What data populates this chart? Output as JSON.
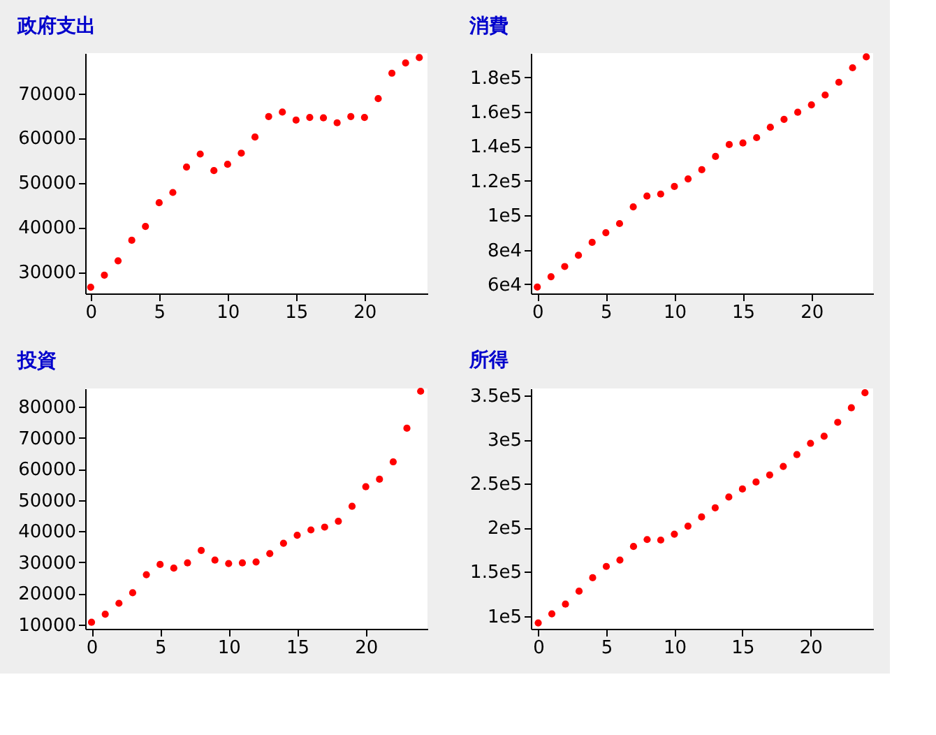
{
  "chart_data": [
    {
      "type": "scatter",
      "title": "政府支出",
      "x": [
        0,
        1,
        2,
        3,
        4,
        5,
        6,
        7,
        8,
        9,
        10,
        11,
        12,
        13,
        14,
        15,
        16,
        17,
        18,
        19,
        20,
        21,
        22,
        23,
        24
      ],
      "series": [
        {
          "color": "#ff0000",
          "values": [
            26600,
            29300,
            32500,
            37100,
            40200,
            45500,
            47800,
            53500,
            56400,
            52700,
            54100,
            56600,
            60200,
            64800,
            65800,
            64000,
            64600,
            64500,
            63400,
            64800,
            64600,
            68800,
            74500,
            76800,
            78000
          ]
        }
      ],
      "xlim": [
        -0.4,
        24.6
      ],
      "ylim": [
        25200,
        79000
      ],
      "xticks": [
        0,
        5,
        10,
        15,
        20
      ],
      "yticks": [
        30000,
        40000,
        50000,
        60000,
        70000
      ],
      "marker": "circle",
      "grid": false
    },
    {
      "type": "scatter",
      "title": "消費",
      "x": [
        0,
        1,
        2,
        3,
        4,
        5,
        6,
        7,
        8,
        9,
        10,
        11,
        12,
        13,
        14,
        15,
        16,
        17,
        18,
        19,
        20,
        21,
        22,
        23,
        24
      ],
      "series": [
        {
          "color": "#ff0000",
          "values": [
            58400,
            64400,
            70300,
            76800,
            84300,
            89900,
            95200,
            104900,
            111100,
            112300,
            116700,
            121100,
            126400,
            134100,
            141000,
            141900,
            145000,
            151000,
            155600,
            159700,
            164000,
            169700,
            177100,
            185500,
            191800
          ]
        }
      ],
      "xlim": [
        -0.47,
        24.5
      ],
      "ylim": [
        54700,
        194000
      ],
      "xticks": [
        0,
        5,
        10,
        15,
        20
      ],
      "yticks": [
        {
          "value": 60000,
          "label": "6e4"
        },
        {
          "value": 80000,
          "label": "8e4"
        },
        {
          "value": 100000,
          "label": "1e5"
        },
        {
          "value": 120000,
          "label": "1.2e5"
        },
        {
          "value": 140000,
          "label": "1.4e5"
        },
        {
          "value": 160000,
          "label": "1.6e5"
        },
        {
          "value": 180000,
          "label": "1.8e5"
        }
      ],
      "marker": "circle",
      "grid": false
    },
    {
      "type": "scatter",
      "title": "投資",
      "x": [
        0,
        1,
        2,
        3,
        4,
        5,
        6,
        7,
        8,
        9,
        10,
        11,
        12,
        13,
        14,
        15,
        16,
        17,
        18,
        19,
        20,
        21,
        22,
        23,
        24
      ],
      "series": [
        {
          "color": "#ff0000",
          "values": [
            10700,
            13300,
            16800,
            20200,
            26000,
            29300,
            28100,
            29800,
            33800,
            30700,
            29600,
            29800,
            30100,
            32800,
            36100,
            38700,
            40400,
            41300,
            43200,
            48000,
            54300,
            56700,
            62300,
            73100,
            85000
          ]
        }
      ],
      "xlim": [
        -0.46,
        24.5
      ],
      "ylim": [
        8600,
        85900
      ],
      "xticks": [
        0,
        5,
        10,
        15,
        20
      ],
      "yticks": [
        10000,
        20000,
        30000,
        40000,
        50000,
        60000,
        70000,
        80000
      ],
      "marker": "circle",
      "grid": false
    },
    {
      "type": "scatter",
      "title": "所得",
      "x": [
        0,
        1,
        2,
        3,
        4,
        5,
        6,
        7,
        8,
        9,
        10,
        11,
        12,
        13,
        14,
        15,
        16,
        17,
        18,
        19,
        20,
        21,
        22,
        23,
        24
      ],
      "series": [
        {
          "color": "#ff0000",
          "values": [
            92100,
            102400,
            113400,
            128000,
            143300,
            156100,
            163400,
            178700,
            186600,
            186000,
            192700,
            201800,
            212200,
            222600,
            234800,
            243900,
            251800,
            259800,
            269500,
            282900,
            295700,
            303700,
            319500,
            336000,
            353000
          ]
        }
      ],
      "xlim": [
        -0.54,
        24.6
      ],
      "ylim": [
        85400,
        357900
      ],
      "xticks": [
        0,
        5,
        10,
        15,
        20
      ],
      "yticks": [
        {
          "value": 100000,
          "label": "1e5"
        },
        {
          "value": 150000,
          "label": "1.5e5"
        },
        {
          "value": 200000,
          "label": "2e5"
        },
        {
          "value": 250000,
          "label": "2.5e5"
        },
        {
          "value": 300000,
          "label": "3e5"
        },
        {
          "value": 350000,
          "label": "3.5e5"
        }
      ],
      "marker": "circle",
      "grid": false
    }
  ]
}
